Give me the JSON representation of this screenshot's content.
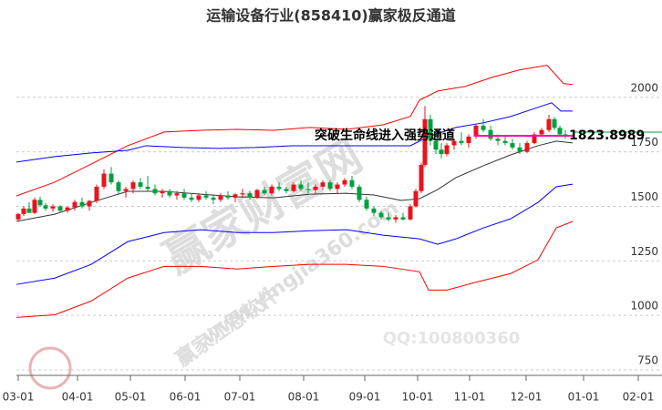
{
  "chart_data": {
    "type": "candlestick",
    "title": "运输设备行业(858410)赢家极反通道",
    "annotation": "突破生命线进入强势通道",
    "last_price": 1823.8989,
    "watermarks": [
      "赢家财富网",
      "www.yingjia360.com",
      "赢家江恩软件",
      "QQ:100800360"
    ],
    "xlim": [
      0,
      708
    ],
    "ylim": [
      725,
      2300
    ],
    "xticks": [
      {
        "value": 2,
        "label": "03-01"
      },
      {
        "value": 67,
        "label": "04-01"
      },
      {
        "value": 125,
        "label": "05-01"
      },
      {
        "value": 185,
        "label": "06-01"
      },
      {
        "value": 245,
        "label": "07-01"
      },
      {
        "value": 315,
        "label": "08-01"
      },
      {
        "value": 382,
        "label": "09-01"
      },
      {
        "value": 440,
        "label": "10-01"
      },
      {
        "value": 497,
        "label": "11-01"
      },
      {
        "value": 559,
        "label": "12-01"
      },
      {
        "value": 622,
        "label": "01-01"
      },
      {
        "value": 682,
        "label": "02-01"
      }
    ],
    "yticks": [
      750,
      1000,
      1250,
      1500,
      1750,
      2000
    ],
    "grid": true,
    "up_color": "#e8141c",
    "down_color": "#00a040",
    "candles": {
      "x": [
        2,
        8,
        14,
        20,
        26,
        32,
        40,
        48,
        56,
        64,
        72,
        80,
        88,
        96,
        104,
        112,
        120,
        128,
        136,
        144,
        152,
        160,
        168,
        176,
        184,
        192,
        200,
        208,
        216,
        224,
        232,
        240,
        248,
        256,
        264,
        272,
        280,
        288,
        296,
        304,
        312,
        320,
        328,
        336,
        344,
        352,
        360,
        368,
        376,
        384,
        392,
        400,
        408,
        416,
        424,
        432,
        438,
        444,
        448,
        454,
        460,
        466,
        472,
        480,
        488,
        496,
        504,
        512,
        520,
        528,
        536,
        544,
        552,
        560,
        568,
        576,
        584,
        590,
        596,
        602
      ],
      "open": [
        1440,
        1465,
        1490,
        1470,
        1530,
        1505,
        1490,
        1500,
        1480,
        1495,
        1520,
        1500,
        1525,
        1590,
        1650,
        1610,
        1570,
        1580,
        1610,
        1590,
        1580,
        1560,
        1570,
        1550,
        1560,
        1540,
        1530,
        1550,
        1540,
        1530,
        1550,
        1540,
        1555,
        1560,
        1540,
        1575,
        1560,
        1590,
        1580,
        1570,
        1600,
        1580,
        1575,
        1590,
        1610,
        1580,
        1600,
        1620,
        1590,
        1530,
        1490,
        1470,
        1450,
        1440,
        1450,
        1440,
        1500,
        1570,
        1690,
        1900,
        1800,
        1760,
        1740,
        1780,
        1800,
        1790,
        1820,
        1870,
        1850,
        1810,
        1800,
        1790,
        1770,
        1750,
        1790,
        1830,
        1850,
        1900,
        1860,
        1830
      ],
      "high": [
        1470,
        1500,
        1520,
        1540,
        1545,
        1515,
        1510,
        1505,
        1500,
        1530,
        1540,
        1530,
        1600,
        1670,
        1680,
        1620,
        1590,
        1620,
        1630,
        1640,
        1600,
        1580,
        1580,
        1570,
        1580,
        1560,
        1560,
        1570,
        1550,
        1560,
        1570,
        1560,
        1580,
        1570,
        1580,
        1590,
        1600,
        1610,
        1590,
        1610,
        1620,
        1610,
        1600,
        1620,
        1620,
        1610,
        1630,
        1640,
        1600,
        1545,
        1500,
        1480,
        1470,
        1460,
        1470,
        1510,
        1580,
        1700,
        1960,
        1920,
        1830,
        1790,
        1790,
        1810,
        1840,
        1830,
        1880,
        1900,
        1870,
        1830,
        1820,
        1810,
        1790,
        1800,
        1840,
        1860,
        1920,
        1910,
        1870,
        1850
      ],
      "low": [
        1430,
        1455,
        1480,
        1465,
        1500,
        1480,
        1475,
        1470,
        1470,
        1480,
        1490,
        1480,
        1515,
        1580,
        1600,
        1560,
        1540,
        1560,
        1580,
        1570,
        1550,
        1540,
        1540,
        1530,
        1530,
        1520,
        1520,
        1530,
        1510,
        1520,
        1530,
        1520,
        1540,
        1530,
        1535,
        1550,
        1550,
        1570,
        1560,
        1565,
        1570,
        1560,
        1560,
        1575,
        1570,
        1560,
        1590,
        1580,
        1520,
        1480,
        1455,
        1440,
        1430,
        1425,
        1435,
        1435,
        1495,
        1560,
        1680,
        1780,
        1740,
        1720,
        1730,
        1760,
        1780,
        1770,
        1810,
        1840,
        1800,
        1780,
        1780,
        1760,
        1740,
        1745,
        1785,
        1820,
        1840,
        1850,
        1820,
        1810
      ],
      "close": [
        1465,
        1490,
        1470,
        1530,
        1505,
        1490,
        1500,
        1480,
        1495,
        1520,
        1500,
        1525,
        1590,
        1650,
        1610,
        1570,
        1580,
        1610,
        1590,
        1580,
        1560,
        1570,
        1550,
        1560,
        1540,
        1530,
        1550,
        1540,
        1530,
        1550,
        1540,
        1555,
        1560,
        1540,
        1575,
        1560,
        1590,
        1580,
        1570,
        1600,
        1580,
        1575,
        1590,
        1610,
        1580,
        1600,
        1620,
        1590,
        1530,
        1490,
        1470,
        1450,
        1440,
        1450,
        1440,
        1500,
        1570,
        1690,
        1900,
        1800,
        1760,
        1740,
        1780,
        1800,
        1790,
        1820,
        1870,
        1850,
        1810,
        1800,
        1790,
        1770,
        1750,
        1790,
        1830,
        1850,
        1900,
        1860,
        1830,
        1823.8989
      ]
    },
    "bands": [
      {
        "color": "#ff0000",
        "x": [
          0,
          42,
          82,
          122,
          162,
          202,
          242,
          282,
          322,
          362,
          402,
          432,
          442,
          462,
          492,
          522,
          552,
          582,
          600,
          610
        ],
        "values": [
          1548,
          1611,
          1694,
          1778,
          1841,
          1849,
          1853,
          1849,
          1862,
          1853,
          1874,
          1912,
          1987,
          2029,
          2050,
          2092,
          2126,
          2147,
          2063,
          2059
        ]
      },
      {
        "color": "#0000ff",
        "x": [
          0,
          42,
          82,
          122,
          142,
          182,
          222,
          262,
          302,
          342,
          382,
          412,
          432,
          452,
          482,
          512,
          542,
          572,
          587,
          597,
          610
        ],
        "values": [
          1703,
          1728,
          1745,
          1757,
          1778,
          1770,
          1766,
          1770,
          1778,
          1778,
          1778,
          1778,
          1778,
          1820,
          1862,
          1883,
          1912,
          1954,
          1975,
          1937,
          1937
        ]
      },
      {
        "color": "#333333",
        "x": [
          0,
          42,
          82,
          122,
          162,
          202,
          242,
          282,
          322,
          362,
          392,
          422,
          442,
          462,
          482,
          512,
          542,
          572,
          592,
          610
        ],
        "values": [
          1431,
          1464,
          1518,
          1569,
          1569,
          1556,
          1544,
          1539,
          1556,
          1560,
          1552,
          1527,
          1535,
          1577,
          1632,
          1686,
          1736,
          1778,
          1799,
          1791
        ]
      },
      {
        "color": "#0000ff",
        "x": [
          0,
          42,
          82,
          122,
          162,
          202,
          242,
          282,
          322,
          362,
          402,
          442,
          462,
          482,
          512,
          542,
          572,
          592,
          610
        ],
        "values": [
          1142,
          1171,
          1234,
          1338,
          1380,
          1393,
          1380,
          1380,
          1388,
          1393,
          1368,
          1351,
          1326,
          1351,
          1401,
          1443,
          1518,
          1590,
          1602
        ]
      },
      {
        "color": "#ff0000",
        "x": [
          0,
          42,
          82,
          122,
          162,
          202,
          242,
          282,
          322,
          362,
          402,
          442,
          452,
          472,
          502,
          542,
          572,
          592,
          610
        ],
        "values": [
          991,
          1003,
          1066,
          1171,
          1225,
          1225,
          1213,
          1225,
          1234,
          1234,
          1225,
          1200,
          1116,
          1116,
          1150,
          1192,
          1255,
          1401,
          1431
        ]
      }
    ]
  }
}
